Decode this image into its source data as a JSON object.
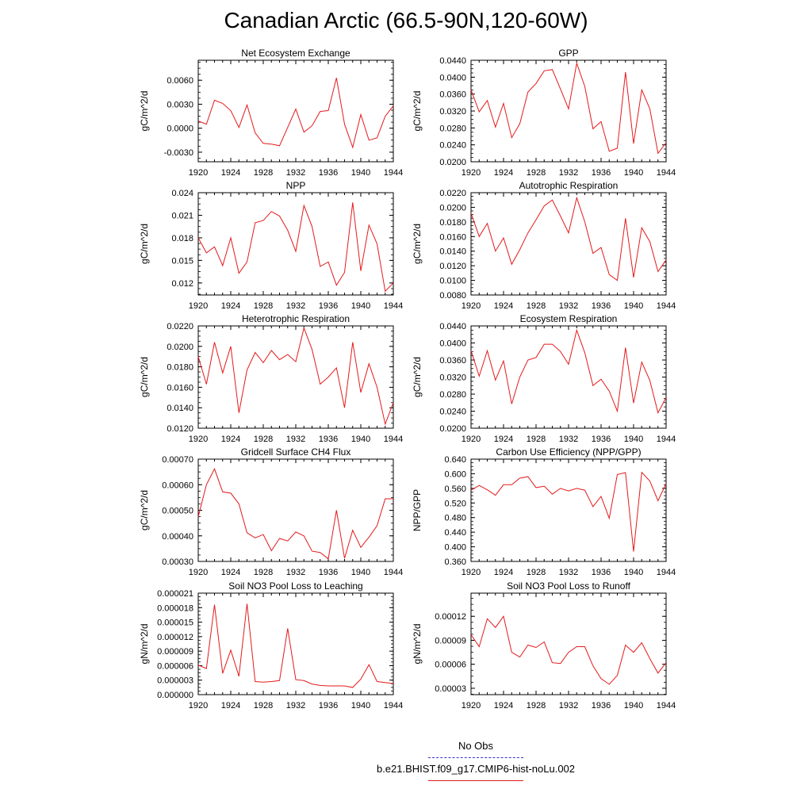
{
  "title": "Canadian Arctic (66.5-90N,120-60W)",
  "legend": {
    "obs_label": "No Obs",
    "obs_color": "#3333cc",
    "model_label": "b.e21.BHIST.f09_g17.CMIP6-hist-noLu.002",
    "model_color": "#e31a1c"
  },
  "chart_data": [
    {
      "type": "line",
      "title": "Net Ecosystem Exchange",
      "ylabel": "gC/m^2/d",
      "xlim": [
        1920,
        1944
      ],
      "x_ticks": [
        "1920",
        "1924",
        "1928",
        "1932",
        "1936",
        "1940",
        "1944"
      ],
      "ylim": [
        -0.0042,
        0.0085
      ],
      "y_ticks": [
        "-0.0030",
        "0.0000",
        "0.0030",
        "0.0060"
      ],
      "x": [
        1920,
        1921,
        1922,
        1923,
        1924,
        1925,
        1926,
        1927,
        1928,
        1929,
        1930,
        1931,
        1932,
        1933,
        1934,
        1935,
        1936,
        1937,
        1938,
        1939,
        1940,
        1941,
        1942,
        1943,
        1944
      ],
      "series": [
        {
          "values": [
            0.0009,
            0.0005,
            0.0035,
            0.0031,
            0.0022,
            0.0001,
            0.0029,
            -0.0006,
            -0.0019,
            -0.002,
            -0.0022,
            0.0001,
            0.0024,
            -0.0005,
            0.0003,
            0.0021,
            0.0022,
            0.0063,
            0.0005,
            -0.0024,
            0.0017,
            -0.0015,
            -0.0012,
            0.0015,
            0.0028
          ]
        }
      ]
    },
    {
      "type": "line",
      "title": "GPP",
      "ylabel": "gC/m^2/d",
      "xlim": [
        1920,
        1944
      ],
      "x_ticks": [
        "1920",
        "1924",
        "1928",
        "1932",
        "1936",
        "1940",
        "1944"
      ],
      "ylim": [
        0.02,
        0.044
      ],
      "y_ticks": [
        "0.0200",
        "0.0240",
        "0.0280",
        "0.0320",
        "0.0360",
        "0.0400",
        "0.0440"
      ],
      "x": [
        1920,
        1921,
        1922,
        1923,
        1924,
        1925,
        1926,
        1927,
        1928,
        1929,
        1930,
        1931,
        1932,
        1933,
        1934,
        1935,
        1936,
        1937,
        1938,
        1939,
        1940,
        1941,
        1942,
        1943,
        1944
      ],
      "series": [
        {
          "values": [
            0.037,
            0.0318,
            0.0345,
            0.0282,
            0.0338,
            0.0257,
            0.029,
            0.0365,
            0.0385,
            0.0415,
            0.0418,
            0.0372,
            0.0325,
            0.0433,
            0.0378,
            0.0278,
            0.0295,
            0.0225,
            0.0232,
            0.0412,
            0.0243,
            0.037,
            0.0325,
            0.022,
            0.0245
          ]
        }
      ]
    },
    {
      "type": "line",
      "title": "NPP",
      "ylabel": "gC/m^2/d",
      "xlim": [
        1920,
        1944
      ],
      "x_ticks": [
        "1920",
        "1924",
        "1928",
        "1932",
        "1936",
        "1940",
        "1944"
      ],
      "ylim": [
        0.0104,
        0.024
      ],
      "y_ticks": [
        "0.012",
        "0.015",
        "0.018",
        "0.021",
        "0.024"
      ],
      "x": [
        1920,
        1921,
        1922,
        1923,
        1924,
        1925,
        1926,
        1927,
        1928,
        1929,
        1930,
        1931,
        1932,
        1933,
        1934,
        1935,
        1936,
        1937,
        1938,
        1939,
        1940,
        1941,
        1942,
        1943,
        1944
      ],
      "series": [
        {
          "values": [
            0.018,
            0.016,
            0.0168,
            0.0143,
            0.018,
            0.0133,
            0.0148,
            0.02,
            0.0203,
            0.0215,
            0.0209,
            0.019,
            0.0162,
            0.0223,
            0.0195,
            0.0142,
            0.0148,
            0.0117,
            0.0134,
            0.0227,
            0.0136,
            0.0197,
            0.0172,
            0.0109,
            0.012
          ]
        }
      ]
    },
    {
      "type": "line",
      "title": "Autotrophic Respiration",
      "ylabel": "gC/m^2/d",
      "xlim": [
        1920,
        1944
      ],
      "x_ticks": [
        "1920",
        "1924",
        "1928",
        "1932",
        "1936",
        "1940",
        "1944"
      ],
      "ylim": [
        0.008,
        0.022
      ],
      "y_ticks": [
        "0.0080",
        "0.0100",
        "0.0120",
        "0.0140",
        "0.0160",
        "0.0180",
        "0.0200",
        "0.0220"
      ],
      "x": [
        1920,
        1921,
        1922,
        1923,
        1924,
        1925,
        1926,
        1927,
        1928,
        1929,
        1930,
        1931,
        1932,
        1933,
        1934,
        1935,
        1936,
        1937,
        1938,
        1939,
        1940,
        1941,
        1942,
        1943,
        1944
      ],
      "series": [
        {
          "values": [
            0.0192,
            0.016,
            0.0178,
            0.014,
            0.0158,
            0.0122,
            0.0142,
            0.0165,
            0.0183,
            0.0202,
            0.021,
            0.0188,
            0.0165,
            0.0213,
            0.018,
            0.0137,
            0.0145,
            0.0108,
            0.01,
            0.0185,
            0.0104,
            0.0172,
            0.0153,
            0.0112,
            0.0128
          ]
        }
      ]
    },
    {
      "type": "line",
      "title": "Heterotrophic Respiration",
      "ylabel": "gC/m^2/d",
      "xlim": [
        1920,
        1944
      ],
      "x_ticks": [
        "1920",
        "1924",
        "1928",
        "1932",
        "1936",
        "1940",
        "1944"
      ],
      "ylim": [
        0.012,
        0.022
      ],
      "y_ticks": [
        "0.0120",
        "0.0140",
        "0.0160",
        "0.0180",
        "0.0200",
        "0.0220"
      ],
      "x": [
        1920,
        1921,
        1922,
        1923,
        1924,
        1925,
        1926,
        1927,
        1928,
        1929,
        1930,
        1931,
        1932,
        1933,
        1934,
        1935,
        1936,
        1937,
        1938,
        1939,
        1940,
        1941,
        1942,
        1943,
        1944
      ],
      "series": [
        {
          "values": [
            0.019,
            0.0163,
            0.0204,
            0.0174,
            0.02,
            0.0135,
            0.0177,
            0.0194,
            0.0184,
            0.0196,
            0.0187,
            0.0192,
            0.0185,
            0.0218,
            0.0197,
            0.0163,
            0.017,
            0.0179,
            0.014,
            0.0204,
            0.0155,
            0.0183,
            0.016,
            0.0124,
            0.0145
          ]
        }
      ]
    },
    {
      "type": "line",
      "title": "Ecosystem Respiration",
      "ylabel": "gC/m^2/d",
      "xlim": [
        1920,
        1944
      ],
      "x_ticks": [
        "1920",
        "1924",
        "1928",
        "1932",
        "1936",
        "1940",
        "1944"
      ],
      "ylim": [
        0.02,
        0.044
      ],
      "y_ticks": [
        "0.0200",
        "0.0240",
        "0.0280",
        "0.0320",
        "0.0360",
        "0.0400",
        "0.0440"
      ],
      "x": [
        1920,
        1921,
        1922,
        1923,
        1924,
        1925,
        1926,
        1927,
        1928,
        1929,
        1930,
        1931,
        1932,
        1933,
        1934,
        1935,
        1936,
        1937,
        1938,
        1939,
        1940,
        1941,
        1942,
        1943,
        1944
      ],
      "series": [
        {
          "values": [
            0.0382,
            0.0322,
            0.0382,
            0.0313,
            0.0358,
            0.0257,
            0.032,
            0.036,
            0.0366,
            0.0397,
            0.0397,
            0.038,
            0.035,
            0.043,
            0.0377,
            0.03,
            0.0315,
            0.0287,
            0.024,
            0.0389,
            0.0259,
            0.0355,
            0.0312,
            0.0236,
            0.0272
          ]
        }
      ]
    },
    {
      "type": "line",
      "title": "Gridcell Surface CH4 Flux",
      "ylabel": "gC/m^2/d",
      "xlim": [
        1920,
        1944
      ],
      "x_ticks": [
        "1920",
        "1924",
        "1928",
        "1932",
        "1936",
        "1940",
        "1944"
      ],
      "ylim": [
        0.0003,
        0.0007
      ],
      "y_ticks": [
        "0.00030",
        "0.00040",
        "0.00050",
        "0.00060",
        "0.00070"
      ],
      "x": [
        1920,
        1921,
        1922,
        1923,
        1924,
        1925,
        1926,
        1927,
        1928,
        1929,
        1930,
        1931,
        1932,
        1933,
        1934,
        1935,
        1936,
        1937,
        1938,
        1939,
        1940,
        1941,
        1942,
        1943,
        1944
      ],
      "series": [
        {
          "values": [
            0.000475,
            0.0006,
            0.000662,
            0.000572,
            0.000567,
            0.000525,
            0.000412,
            0.000392,
            0.000405,
            0.000342,
            0.00039,
            0.00038,
            0.000415,
            0.0004,
            0.00034,
            0.000335,
            0.00031,
            0.0005,
            0.000312,
            0.000422,
            0.000355,
            0.000395,
            0.00044,
            0.000545,
            0.000545
          ]
        }
      ]
    },
    {
      "type": "line",
      "title": "Carbon Use Efficiency (NPP/GPP)",
      "ylabel": "NPP/GPP",
      "xlim": [
        1920,
        1944
      ],
      "x_ticks": [
        "1920",
        "1924",
        "1928",
        "1932",
        "1936",
        "1940",
        "1944"
      ],
      "ylim": [
        0.36,
        0.64
      ],
      "y_ticks": [
        "0.360",
        "0.400",
        "0.440",
        "0.480",
        "0.520",
        "0.560",
        "0.600",
        "0.640"
      ],
      "x": [
        1920,
        1921,
        1922,
        1923,
        1924,
        1925,
        1926,
        1927,
        1928,
        1929,
        1930,
        1931,
        1932,
        1933,
        1934,
        1935,
        1936,
        1937,
        1938,
        1939,
        1940,
        1941,
        1942,
        1943,
        1944
      ],
      "series": [
        {
          "values": [
            0.555,
            0.568,
            0.556,
            0.541,
            0.57,
            0.57,
            0.588,
            0.592,
            0.562,
            0.566,
            0.544,
            0.56,
            0.553,
            0.56,
            0.555,
            0.51,
            0.538,
            0.478,
            0.598,
            0.603,
            0.387,
            0.604,
            0.58,
            0.526,
            0.573
          ]
        }
      ]
    },
    {
      "type": "line",
      "title": "Soil NO3 Pool Loss to Leaching",
      "ylabel": "gN/m^2/d",
      "xlim": [
        1920,
        1944
      ],
      "x_ticks": [
        "1920",
        "1924",
        "1928",
        "1932",
        "1936",
        "1940",
        "1944"
      ],
      "ylim": [
        0,
        2.1e-05
      ],
      "y_ticks": [
        "0.000000",
        "0.000003",
        "0.000006",
        "0.000009",
        "0.000012",
        "0.000015",
        "0.000018",
        "0.000021"
      ],
      "x": [
        1920,
        1921,
        1922,
        1923,
        1924,
        1925,
        1926,
        1927,
        1928,
        1929,
        1930,
        1931,
        1932,
        1933,
        1934,
        1935,
        1936,
        1937,
        1938,
        1939,
        1940,
        1941,
        1942,
        1943,
        1944
      ],
      "series": [
        {
          "values": [
            6.1e-06,
            5.4e-06,
            1.86e-05,
            4.4e-06,
            9.2e-06,
            3.8e-06,
            1.88e-05,
            2.7e-06,
            2.6e-06,
            2.7e-06,
            2.9e-06,
            1.37e-05,
            3.1e-06,
            2.9e-06,
            2.2e-06,
            1.9e-06,
            1.8e-06,
            1.8e-06,
            1.8e-06,
            1.5e-06,
            3.2e-06,
            6.2e-06,
            2.7e-06,
            2.5e-06,
            2.3e-06
          ]
        }
      ]
    },
    {
      "type": "line",
      "title": "Soil NO3 Pool Loss to Runoff",
      "ylabel": "gN/m^2/d",
      "xlim": [
        1920,
        1944
      ],
      "x_ticks": [
        "1920",
        "1924",
        "1928",
        "1932",
        "1936",
        "1940",
        "1944"
      ],
      "ylim": [
        2.2e-05,
        0.000149
      ],
      "y_ticks": [
        "0.00003",
        "0.00006",
        "0.00009",
        "0.00012"
      ],
      "x": [
        1920,
        1921,
        1922,
        1923,
        1924,
        1925,
        1926,
        1927,
        1928,
        1929,
        1930,
        1931,
        1932,
        1933,
        1934,
        1935,
        1936,
        1937,
        1938,
        1939,
        1940,
        1941,
        1942,
        1943,
        1944
      ],
      "series": [
        {
          "values": [
            9.7e-05,
            8.2e-05,
            0.000117,
            0.000106,
            0.00012,
            7.5e-05,
            6.9e-05,
            8.4e-05,
            8.1e-05,
            8.8e-05,
            6.2e-05,
            6.1e-05,
            7.5e-05,
            8.2e-05,
            8.2e-05,
            5.8e-05,
            4.2e-05,
            3.5e-05,
            4.6e-05,
            8.4e-05,
            7.5e-05,
            8.7e-05,
            6.7e-05,
            4.9e-05,
            6.2e-05
          ]
        }
      ]
    }
  ]
}
